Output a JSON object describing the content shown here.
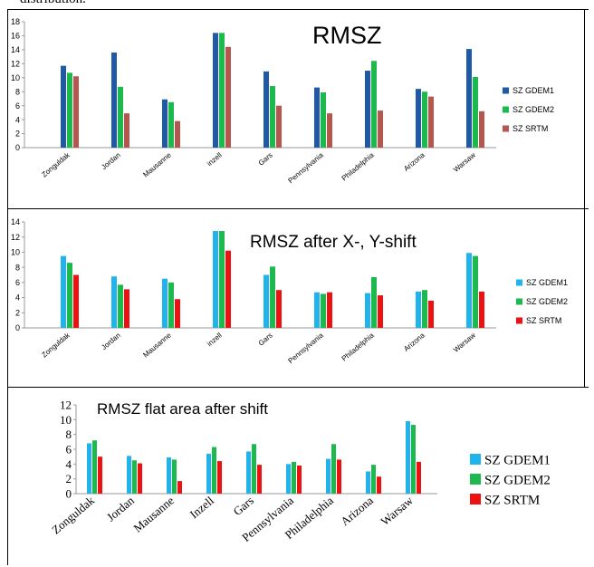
{
  "caption": "distribution.",
  "colors": {
    "gdem1_dark": "#1f5aa6",
    "gdem1_light": "#1fb4ec",
    "gdem2": "#1db84e",
    "srtm_brown": "#b5574e",
    "srtm_red": "#ee1111"
  },
  "chart_data": [
    {
      "type": "bar",
      "title": "RMSZ",
      "categories": [
        "Zonguldak",
        "Jordan",
        "Mausanne",
        "inzell",
        "Gars",
        "Pennsylvania",
        "Philadelphia",
        "Arizona",
        "Warsaw"
      ],
      "series": [
        {
          "name": "SZ GDEM1",
          "values": [
            11.7,
            13.6,
            6.9,
            16.4,
            10.9,
            8.6,
            11.0,
            8.4,
            14.1
          ]
        },
        {
          "name": "SZ GDEM2",
          "values": [
            10.7,
            8.7,
            6.5,
            16.4,
            8.8,
            7.9,
            12.4,
            8.0,
            10.1
          ]
        },
        {
          "name": "SZ SRTM",
          "values": [
            10.2,
            4.9,
            3.8,
            14.4,
            6.0,
            4.9,
            5.3,
            7.3,
            5.2
          ]
        }
      ],
      "ylim": [
        0,
        18
      ],
      "yticks": [
        0,
        2,
        4,
        6,
        8,
        10,
        12,
        14,
        16,
        18
      ],
      "grid": false,
      "legend": "right"
    },
    {
      "type": "bar",
      "title": "RMSZ after X-, Y-shift",
      "categories": [
        "Zonguldak",
        "Jordan",
        "Mausanne",
        "inzell",
        "Gars",
        "Pennsylvania",
        "Philadelphia",
        "Arizona",
        "Warsaw"
      ],
      "series": [
        {
          "name": "SZ GDEM1",
          "values": [
            9.5,
            6.8,
            6.5,
            12.8,
            7.0,
            4.7,
            4.6,
            4.8,
            9.9
          ]
        },
        {
          "name": "SZ GDEM2",
          "values": [
            8.6,
            5.7,
            6.0,
            12.8,
            8.1,
            4.5,
            6.7,
            5.0,
            9.5
          ]
        },
        {
          "name": "SZ SRTM",
          "values": [
            7.0,
            5.1,
            3.8,
            10.2,
            5.0,
            4.7,
            4.3,
            3.6,
            4.8
          ]
        }
      ],
      "ylim": [
        0,
        14
      ],
      "yticks": [
        0,
        2,
        4,
        6,
        8,
        10,
        12,
        14
      ],
      "grid": false,
      "legend": "right"
    },
    {
      "type": "bar",
      "title": "RMSZ flat area after shift",
      "categories": [
        "Zonguldak",
        "Jordan",
        "Mausanne",
        "Inzell",
        "Gars",
        "Pennsylvania",
        "Philadelphia",
        "Arizona",
        "Warsaw"
      ],
      "series": [
        {
          "name": "SZ GDEM1",
          "values": [
            6.8,
            5.1,
            4.9,
            5.4,
            5.7,
            4.0,
            4.7,
            3.0,
            9.8
          ]
        },
        {
          "name": "SZ GDEM2",
          "values": [
            7.2,
            4.5,
            4.6,
            6.3,
            6.7,
            4.3,
            6.7,
            3.9,
            9.3
          ]
        },
        {
          "name": "SZ SRTM",
          "values": [
            5.0,
            4.1,
            1.7,
            4.4,
            3.9,
            3.8,
            4.6,
            2.3,
            4.3
          ]
        }
      ],
      "ylim": [
        0,
        12
      ],
      "yticks": [
        0,
        2,
        4,
        6,
        8,
        10,
        12
      ],
      "grid": false,
      "legend": "right"
    }
  ]
}
